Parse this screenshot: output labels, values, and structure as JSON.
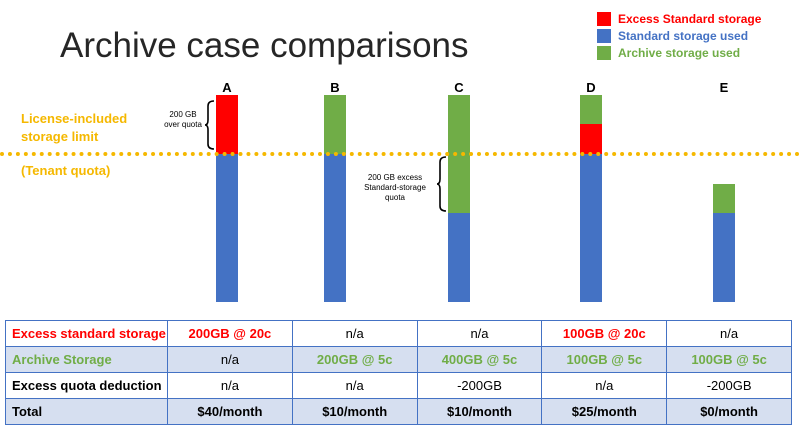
{
  "title": "Archive case comparisons",
  "colors": {
    "excess": "#ff0000",
    "standard": "#4472c4",
    "archive": "#70ad47",
    "limit": "#f5b800"
  },
  "legend": [
    {
      "label": "Excess Standard storage",
      "color": "#ff0000"
    },
    {
      "label": "Standard storage used",
      "color": "#4472c4"
    },
    {
      "label": "Archive storage used",
      "color": "#70ad47"
    }
  ],
  "limit_label": "License-included storage limit",
  "limit_label_line1": "License-included",
  "limit_label_line2": "storage limit",
  "tenant_quota_label": "(Tenant quota)",
  "annotations": {
    "a_line1": "200 GB",
    "a_line2": "over quota",
    "c_line1": "200 GB excess",
    "c_line2": "Standard-storage",
    "c_line3": "quota"
  },
  "cases": [
    {
      "letter": "A",
      "standard_gb": 500,
      "excess_gb": 200,
      "archive_gb": 0
    },
    {
      "letter": "B",
      "standard_gb": 500,
      "excess_gb": 0,
      "archive_gb": 200
    },
    {
      "letter": "C",
      "standard_gb": 300,
      "excess_gb": 0,
      "archive_gb": 400
    },
    {
      "letter": "D",
      "standard_gb": 500,
      "excess_gb": 100,
      "archive_gb": 100
    },
    {
      "letter": "E",
      "standard_gb": 300,
      "excess_gb": 0,
      "archive_gb": 100
    }
  ],
  "table": {
    "rows": [
      {
        "label": "Excess standard storage",
        "style": "red",
        "cells": [
          "200GB @ 20c",
          "n/a",
          "n/a",
          "100GB @ 20c",
          "n/a"
        ],
        "cell_styles": [
          "red",
          "black",
          "black",
          "red",
          "black"
        ]
      },
      {
        "label": "Archive Storage",
        "style": "green",
        "cells": [
          "n/a",
          "200GB @ 5c",
          "400GB @ 5c",
          "100GB @ 5c",
          "100GB @ 5c"
        ],
        "cell_styles": [
          "black",
          "green",
          "green",
          "green",
          "green"
        ]
      },
      {
        "label": "Excess quota deduction",
        "style": "bold",
        "cells": [
          "n/a",
          "n/a",
          "-200GB",
          "n/a",
          "-200GB"
        ],
        "cell_styles": [
          "black",
          "black",
          "black",
          "black",
          "black"
        ]
      },
      {
        "label": "Total",
        "style": "bold",
        "cells": [
          "$40/month",
          "$10/month",
          "$10/month",
          "$25/month",
          "$0/month"
        ],
        "cell_styles": [
          "bold",
          "bold",
          "bold",
          "bold",
          "bold"
        ]
      }
    ]
  }
}
